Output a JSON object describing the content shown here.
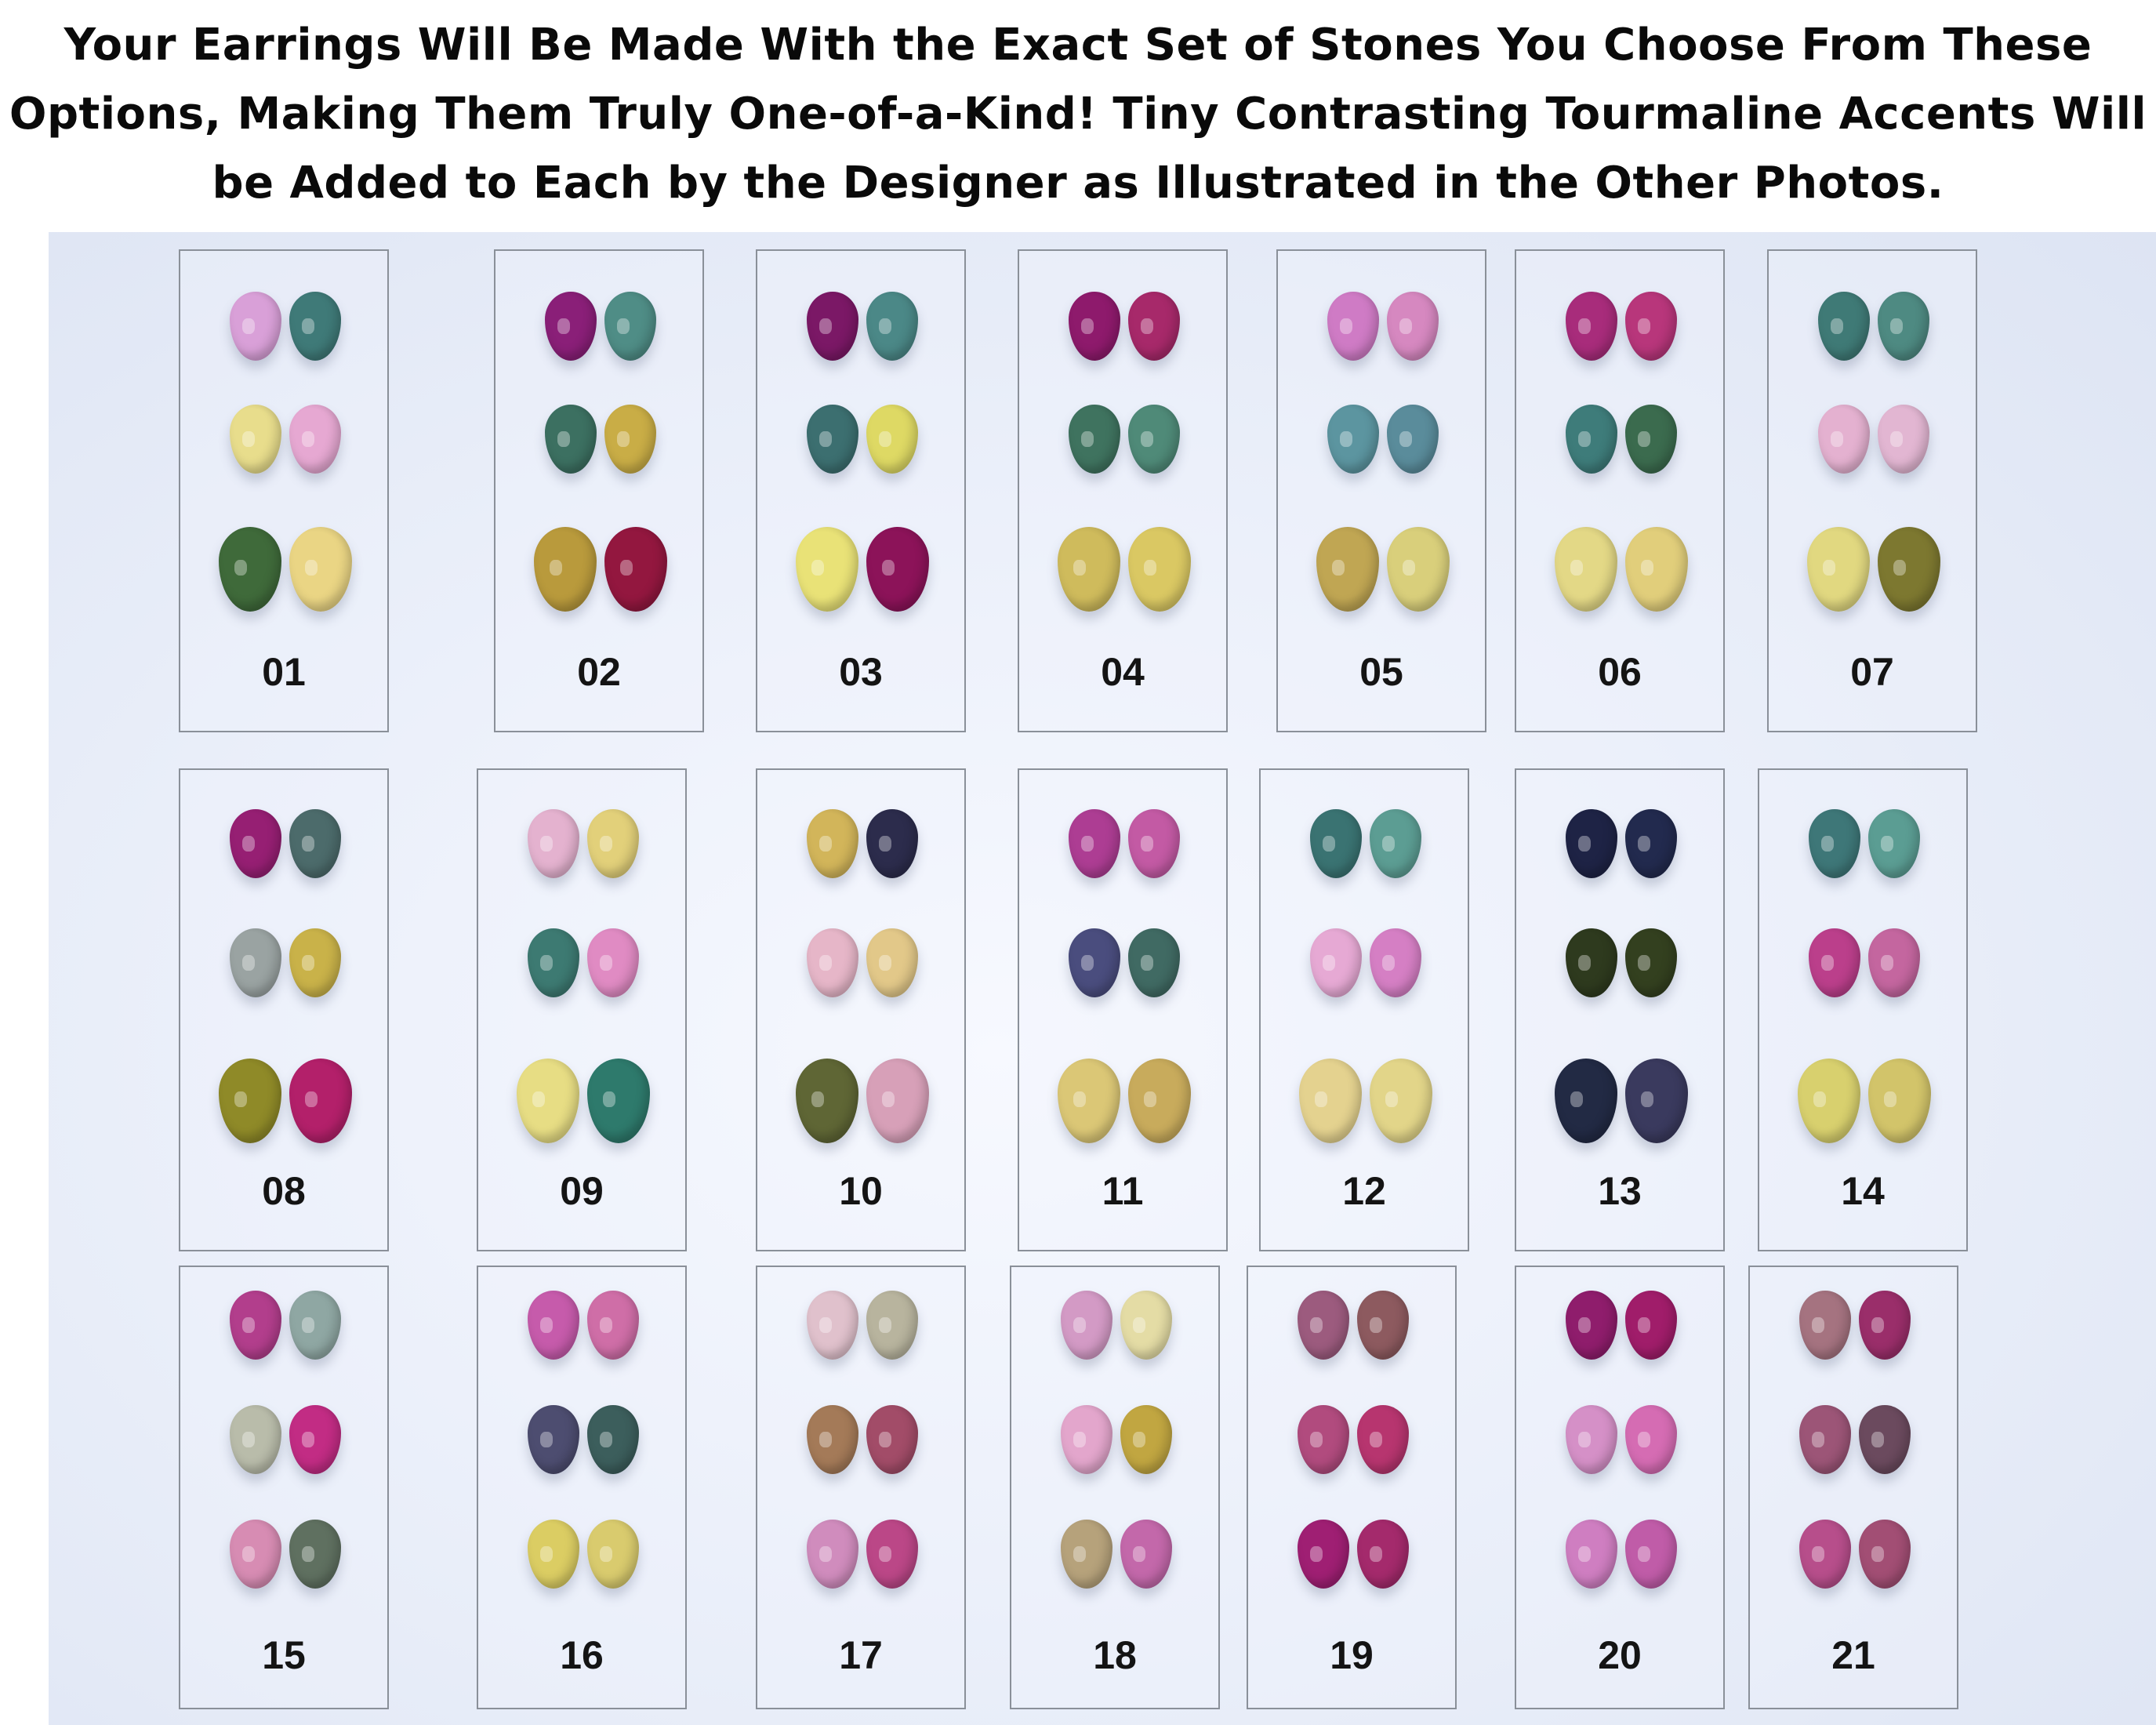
{
  "heading": {
    "line1": "Your Earrings Will Be Made With the Exact Set of Stones You Choose From These",
    "line2": "Options, Making Them Truly One-of-a-Kind! Tiny Contrasting Tourmaline Accents Will",
    "line3": "be Added to Each by the Designer as Illustrated in the Other Photos."
  },
  "options": [
    {
      "label": "01",
      "stones": [
        "#d9a0d8",
        "#3f7a78",
        "#e8dd8c",
        "#e6a8d2",
        "#3f6a3a",
        "#ead584"
      ]
    },
    {
      "label": "02",
      "stones": [
        "#8a1f78",
        "#4f8d86",
        "#3c7061",
        "#c9ad46",
        "#b99a3c",
        "#93173f"
      ]
    },
    {
      "label": "03",
      "stones": [
        "#7b1866",
        "#4b8887",
        "#3c6f70",
        "#ded964",
        "#e9e277",
        "#8c1359"
      ]
    },
    {
      "label": "04",
      "stones": [
        "#8e1a6c",
        "#a7296a",
        "#3f735f",
        "#4f8a78",
        "#cfbb5c",
        "#dac863"
      ]
    },
    {
      "label": "05",
      "stones": [
        "#cf7bc5",
        "#d688c0",
        "#5c95a0",
        "#5a8c9b",
        "#c0a653",
        "#d9cf7b"
      ]
    },
    {
      "label": "06",
      "stones": [
        "#a82c7b",
        "#b8367b",
        "#3e7c7a",
        "#3b6b4e",
        "#e3d886",
        "#e1ce7b"
      ]
    },
    {
      "label": "07",
      "stones": [
        "#3f7a76",
        "#4e8a82",
        "#e4b1d0",
        "#e2b6d2",
        "#e1d880",
        "#7d7830"
      ]
    },
    {
      "label": "08",
      "stones": [
        "#961f73",
        "#4c6b6b",
        "#9aa3a2",
        "#c9b249",
        "#8f8a28",
        "#b3206a"
      ]
    },
    {
      "label": "09",
      "stones": [
        "#e4b2cf",
        "#e2d07a",
        "#3d7a72",
        "#e08bc3",
        "#e7dd84",
        "#2e7a6c"
      ]
    },
    {
      "label": "10",
      "stones": [
        "#d2b55a",
        "#2c2c4c",
        "#e6b6c8",
        "#e2c889",
        "#5f6635",
        "#d7a0b8"
      ]
    },
    {
      "label": "11",
      "stones": [
        "#ad3d93",
        "#c35aa4",
        "#4a4d7e",
        "#406a63",
        "#dbc776",
        "#c8ab5c"
      ]
    },
    {
      "label": "12",
      "stones": [
        "#3a7372",
        "#5c9d93",
        "#e6a9d4",
        "#d57fc4",
        "#e4d28f",
        "#e2d589"
      ]
    },
    {
      "label": "13",
      "stones": [
        "#1e2345",
        "#222a4e",
        "#2e3a1e",
        "#33401f",
        "#222a44",
        "#3a3a5e"
      ]
    },
    {
      "label": "14",
      "stones": [
        "#3e7778",
        "#5b9d93",
        "#bb3f8b",
        "#c4669f",
        "#d8d06e",
        "#d2c46a"
      ]
    },
    {
      "label": "15",
      "stones": [
        "#b23e8c",
        "#8fa7a3",
        "#b9bcaa",
        "#c22c84",
        "#d78cb3",
        "#5f7060"
      ]
    },
    {
      "label": "16",
      "stones": [
        "#c65bab",
        "#cf6ea7",
        "#4d4d70",
        "#3c5e5c",
        "#dbcd63",
        "#d9cb6e"
      ]
    },
    {
      "label": "17",
      "stones": [
        "#e0c1cc",
        "#b8b49e",
        "#a47a58",
        "#a24c68",
        "#d08cbd",
        "#bb4787"
      ]
    },
    {
      "label": "18",
      "stones": [
        "#d39ac5",
        "#e4dca5",
        "#e3a6cc",
        "#c1a641",
        "#b6a27b",
        "#c368aa"
      ]
    },
    {
      "label": "19",
      "stones": [
        "#9c5b7e",
        "#8d5a5f",
        "#b14b7e",
        "#b7356f",
        "#9f1f73",
        "#a42a6c"
      ]
    },
    {
      "label": "20",
      "stones": [
        "#8f1d6c",
        "#a01d6a",
        "#d590c7",
        "#d56cb3",
        "#cf7ec1",
        "#c05ca8"
      ]
    },
    {
      "label": "21",
      "stones": [
        "#a57380",
        "#9a2e6a",
        "#9c5577",
        "#6b4a5e",
        "#b74e8b",
        "#a24e74"
      ]
    }
  ]
}
